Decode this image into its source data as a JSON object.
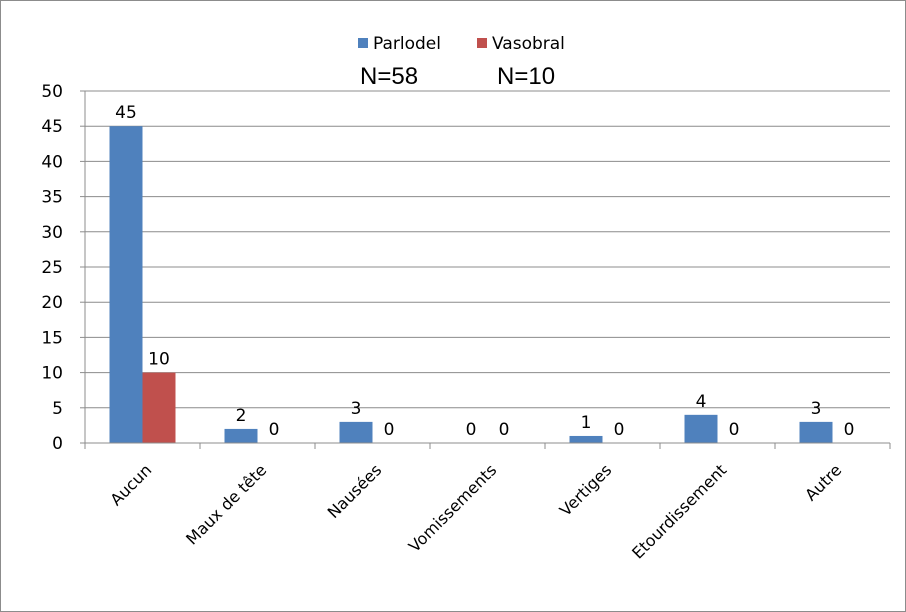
{
  "chart_data": {
    "type": "bar",
    "categories": [
      "Aucun",
      "Maux de tête",
      "Nausées",
      "Vomissements",
      "Vertiges",
      "Etourdissement",
      "Autre"
    ],
    "series": [
      {
        "name": "Parlodel",
        "color": "#4F81BD",
        "values": [
          45,
          2,
          3,
          0,
          1,
          4,
          3
        ]
      },
      {
        "name": "Vasobral",
        "color": "#C0504D",
        "values": [
          10,
          0,
          0,
          0,
          0,
          0,
          0
        ]
      }
    ],
    "annotations": [
      "N=58",
      "N=10"
    ],
    "ylim": [
      0,
      50
    ],
    "yticks": [
      0,
      5,
      10,
      15,
      20,
      25,
      30,
      35,
      40,
      45,
      50
    ],
    "grid": true,
    "legend_position": "top"
  }
}
